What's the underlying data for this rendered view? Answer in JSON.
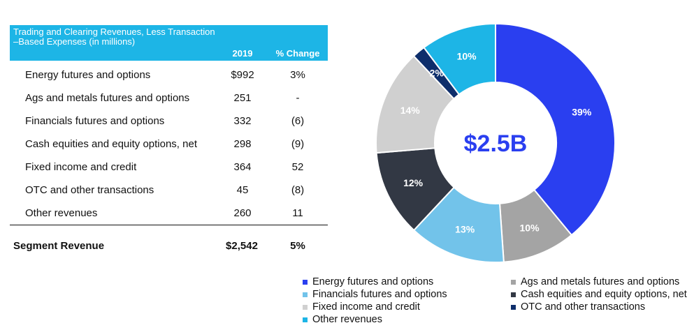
{
  "table": {
    "header_title": "Trading and Clearing Revenues, Less Transaction –Based Expenses (in millions)",
    "col_year": "2019",
    "col_change": "% Change",
    "rows": [
      {
        "label": "Energy futures and options",
        "value": "$992",
        "change": "3%"
      },
      {
        "label": "Ags and metals futures and options",
        "value": "251",
        "change": "-"
      },
      {
        "label": "Financials futures and options",
        "value": "332",
        "change": "(6)"
      },
      {
        "label": "Cash equities and equity options, net",
        "value": "298",
        "change": "(9)"
      },
      {
        "label": "Fixed income and credit",
        "value": "364",
        "change": "52"
      },
      {
        "label": "OTC and other transactions",
        "value": "45",
        "change": "(8)"
      },
      {
        "label": "Other revenues",
        "value": "260",
        "change": "11"
      }
    ],
    "total": {
      "label": "Segment Revenue",
      "value": "$2,542",
      "change": "5%"
    }
  },
  "chart_data": {
    "type": "pie",
    "variant": "donut",
    "center_label": "$2.5B",
    "start": "top, clockwise",
    "categories": [
      "Energy futures and options",
      "Ags and metals futures and options",
      "Financials futures and options",
      "Cash equities and equity options, net",
      "Fixed income and credit",
      "OTC and other transactions",
      "Other revenues"
    ],
    "values": [
      992,
      251,
      332,
      298,
      364,
      45,
      260
    ],
    "data_labels": [
      "39%",
      "10%",
      "13%",
      "12%",
      "14%",
      "2%",
      "10%"
    ],
    "colors": [
      "#2a3ff0",
      "#a4a4a4",
      "#72c3ea",
      "#323844",
      "#d0d0d0",
      "#0e2e6b",
      "#1db5e6"
    ],
    "label_colors": [
      "#ffffff",
      "#ffffff",
      "#ffffff",
      "#ffffff",
      "#ffffff",
      "#ffffff",
      "#ffffff"
    ],
    "center_color": "#2a3ff0",
    "legend": [
      "Energy futures and options",
      "Ags and metals futures and options",
      "Financials futures and options",
      "Cash equities and equity options, net",
      "Fixed income and credit",
      "OTC and other transactions",
      "Other revenues"
    ],
    "legend_position": "bottom"
  }
}
